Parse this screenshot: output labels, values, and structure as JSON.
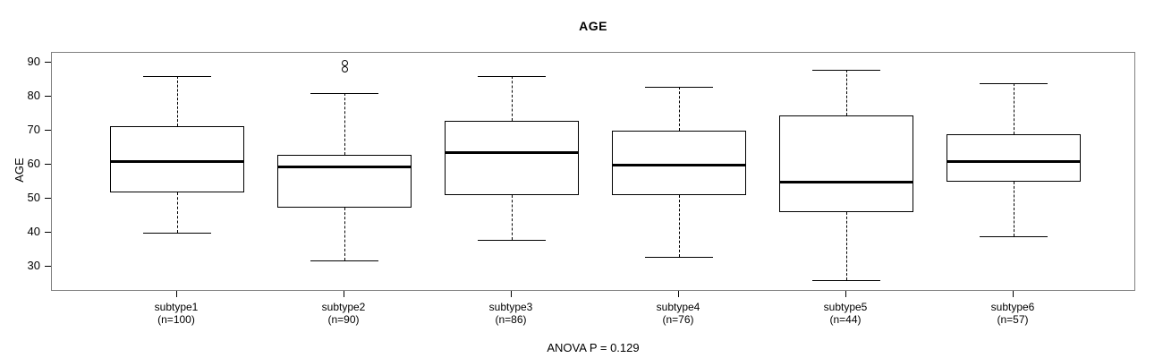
{
  "chart_data": {
    "type": "boxplot",
    "title": "AGE",
    "ylabel": "AGE",
    "subtitle": "ANOVA P = 0.129",
    "yticks": [
      90,
      80,
      70,
      60,
      50,
      40,
      30
    ],
    "ylim": [
      22.7,
      92.95
    ],
    "grid": false,
    "colors": {
      "frame": "#808080",
      "box_stroke": "#000000",
      "background": "#ffffff"
    },
    "groups": [
      {
        "label": "subtype1",
        "n_label": "(n=100)",
        "low": 40,
        "q1": 52,
        "median": 61,
        "q3": 71.5,
        "high": 86,
        "outliers": []
      },
      {
        "label": "subtype2",
        "n_label": "(n=90)",
        "low": 32,
        "q1": 47.5,
        "median": 59.5,
        "q3": 63,
        "high": 81,
        "outliers": [
          88,
          90
        ]
      },
      {
        "label": "subtype3",
        "n_label": "(n=86)",
        "low": 38,
        "q1": 51,
        "median": 63.5,
        "q3": 73,
        "high": 86,
        "outliers": []
      },
      {
        "label": "subtype4",
        "n_label": "(n=76)",
        "low": 33,
        "q1": 51,
        "median": 60,
        "q3": 70,
        "high": 83,
        "outliers": []
      },
      {
        "label": "subtype5",
        "n_label": "(n=44)",
        "low": 26,
        "q1": 46,
        "median": 55,
        "q3": 74.5,
        "high": 88,
        "outliers": []
      },
      {
        "label": "subtype6",
        "n_label": "(n=57)",
        "low": 39,
        "q1": 55,
        "median": 61,
        "q3": 69,
        "high": 84,
        "outliers": []
      }
    ]
  }
}
